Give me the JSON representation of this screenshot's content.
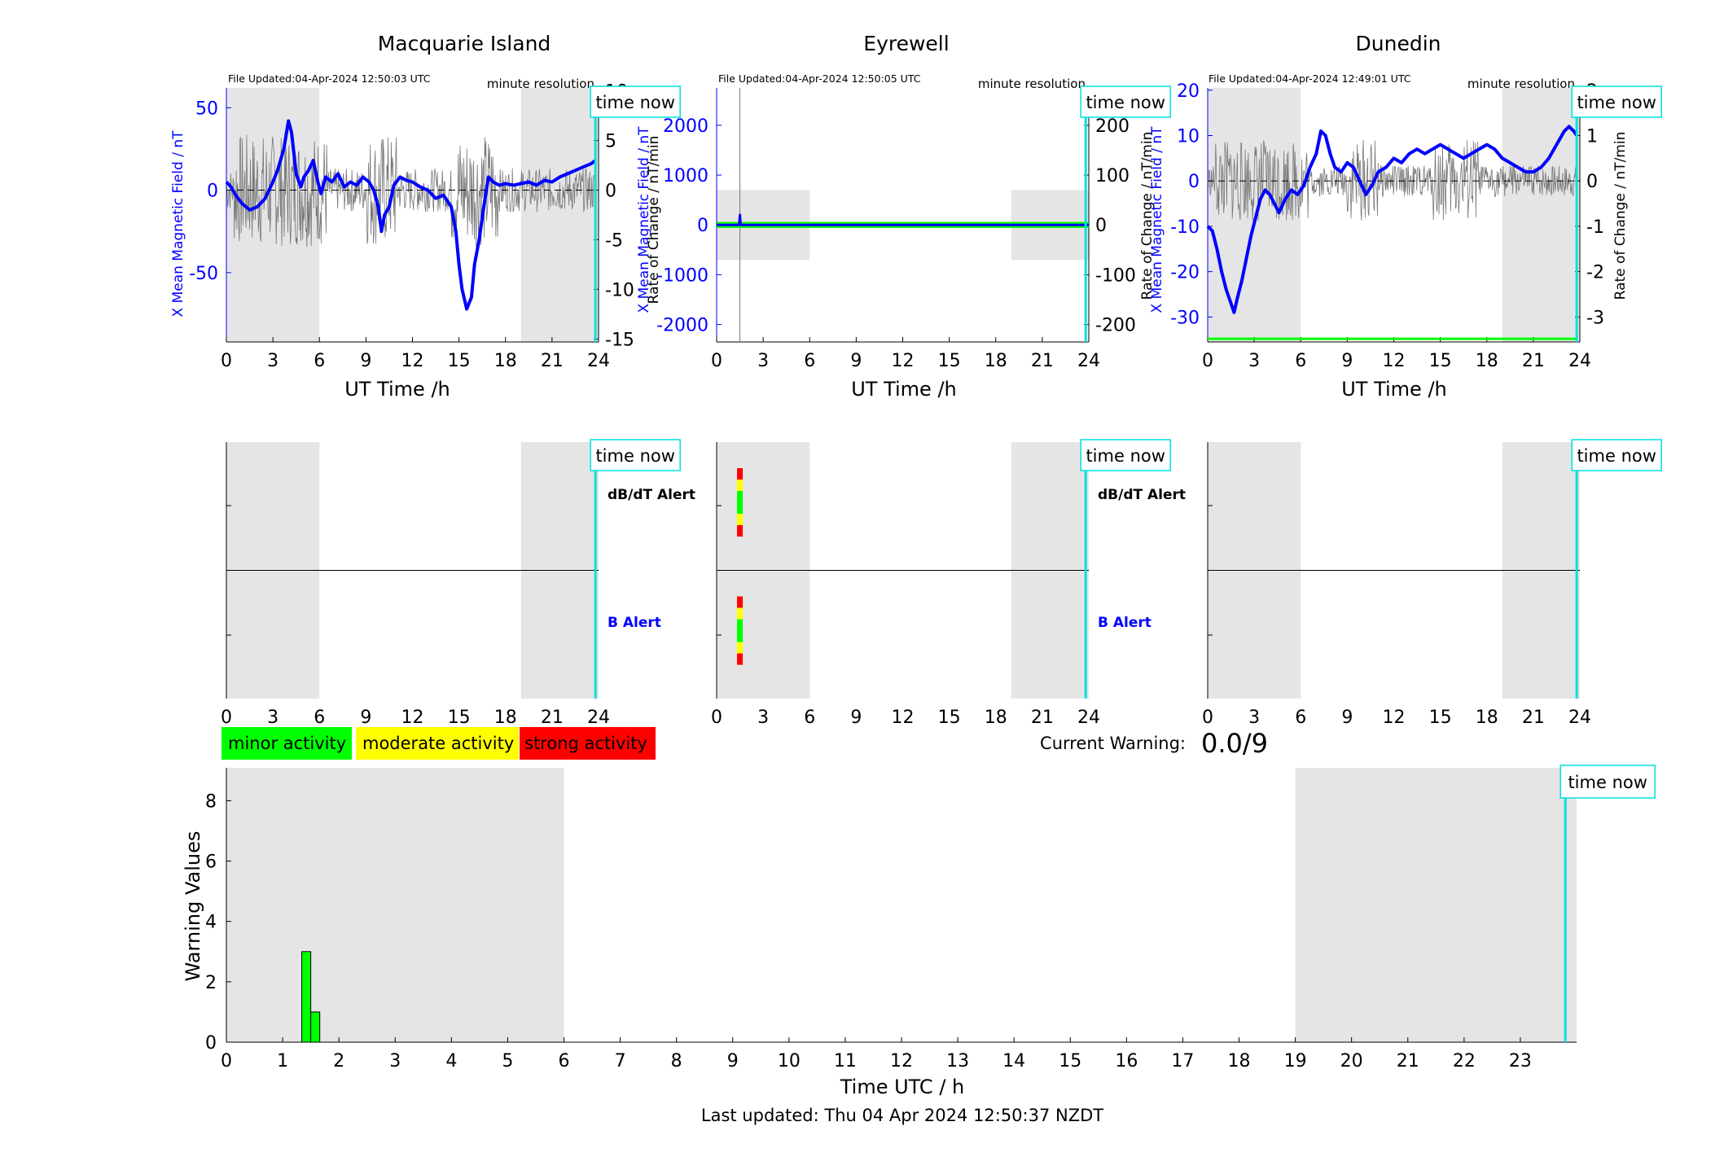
{
  "stations": [
    {
      "name": "Macquarie Island",
      "file_updated": "File Updated:04-Apr-2024 12:50:03 UTC",
      "resolution": "minute resolution",
      "left_ylabel": "X Mean Magnetic Field / nT",
      "right_ylabel": "Rate of Change / nT/min",
      "left_ticks": [
        "50",
        "0",
        "-50"
      ],
      "right_ticks": [
        "10",
        "5",
        "0",
        "-5",
        "-10",
        "-15"
      ],
      "ylim_left": [
        -92,
        62
      ],
      "ylim_right": [
        -15.3,
        10.3
      ],
      "show_db_alert_labels": true
    },
    {
      "name": "Eyrewell",
      "file_updated": "File Updated:04-Apr-2024 12:50:05 UTC",
      "resolution": "minute resolution",
      "left_ylabel": "X Mean Magnetic Field / nT",
      "right_ylabel": "Rate of Change / nT/min",
      "left_ticks": [
        "2000",
        "1000",
        "0",
        "-1000",
        "-2000"
      ],
      "right_ticks": [
        "200",
        "100",
        "0",
        "-100",
        "-200"
      ],
      "ylim_left": [
        -2350,
        2750
      ],
      "ylim_right": [
        -235,
        275
      ],
      "show_db_alert_labels": true
    },
    {
      "name": "Dunedin",
      "file_updated": "File Updated:04-Apr-2024 12:49:01 UTC",
      "resolution": "minute resolution",
      "left_ylabel": "X Mean Magnetic Field / nT",
      "right_ylabel": "Rate of Change / nT/min",
      "left_ticks": [
        "20",
        "10",
        "0",
        "-10",
        "-20",
        "-30"
      ],
      "right_ticks": [
        "2",
        "1",
        "0",
        "-1",
        "-2",
        "-3"
      ],
      "ylim_left": [
        -35.5,
        20.5
      ],
      "ylim_right": [
        -3.55,
        2.05
      ],
      "show_db_alert_labels": false
    }
  ],
  "time_now_label": "time now",
  "db_alert_label": "dB/dT Alert",
  "b_alert_label": "B Alert",
  "x_axis_label": "UT Time /h",
  "x_ticks": [
    "0",
    "3",
    "6",
    "9",
    "12",
    "15",
    "18",
    "21",
    "24"
  ],
  "legend": {
    "minor": "minor activity",
    "moderate": "moderate activity",
    "strong": "strong activity"
  },
  "current_warning": {
    "label": "Current Warning:",
    "value": "0.0/9"
  },
  "bottom_chart": {
    "ylabel": "Warning Values",
    "xlabel": "Time UTC / h",
    "y_ticks": [
      "0",
      "2",
      "4",
      "6",
      "8"
    ],
    "x_ticks": [
      "0",
      "1",
      "2",
      "3",
      "4",
      "5",
      "6",
      "7",
      "8",
      "9",
      "10",
      "11",
      "12",
      "13",
      "14",
      "15",
      "16",
      "17",
      "18",
      "19",
      "20",
      "21",
      "22",
      "23"
    ]
  },
  "footer": "Last updated: Thu 04 Apr 2024 12:50:37 NZDT",
  "colors": {
    "field": "#0000ff",
    "rate": "#555555",
    "now_line": "#00e0e0",
    "night_shading": "#e5e5e5",
    "minor": "#00ff00",
    "moderate": "#ffff00",
    "strong": "#ff0000"
  },
  "chart_data": [
    {
      "type": "line",
      "title": "Macquarie Island",
      "xlabel": "UT Time /h",
      "ylabel": "X Mean Magnetic Field / nT",
      "y2label": "Rate of Change / nT/min",
      "xlim": [
        0,
        24
      ],
      "ylim": [
        -92,
        62
      ],
      "y2lim": [
        -15.3,
        10.3
      ],
      "night_shading_hours": [
        [
          0,
          6
        ],
        [
          19,
          24
        ]
      ],
      "time_now": 23.8,
      "series": [
        {
          "name": "X Mean Magnetic Field",
          "axis": "left",
          "x": [
            0,
            0.3,
            0.6,
            1,
            1.5,
            2,
            2.5,
            3,
            3.3,
            3.7,
            4.0,
            4.2,
            4.5,
            4.8,
            5,
            5.3,
            5.6,
            5.9,
            6.1,
            6.4,
            6.8,
            7.2,
            7.6,
            8,
            8.4,
            8.8,
            9.2,
            9.5,
            9.8,
            10.0,
            10.2,
            10.5,
            10.8,
            11.2,
            11.6,
            12,
            12.5,
            13,
            13.5,
            14,
            14.5,
            14.8,
            15.0,
            15.2,
            15.5,
            15.8,
            16.0,
            16.3,
            16.6,
            16.9,
            17.2,
            17.6,
            18,
            18.5,
            19,
            19.5,
            20,
            20.5,
            21,
            21.5,
            22,
            22.5,
            23,
            23.5,
            23.8
          ],
          "values": [
            5,
            2,
            -3,
            -8,
            -12,
            -10,
            -5,
            5,
            12,
            25,
            42,
            35,
            10,
            2,
            8,
            12,
            18,
            5,
            -2,
            8,
            5,
            10,
            2,
            5,
            3,
            8,
            5,
            0,
            -10,
            -25,
            -15,
            -10,
            3,
            8,
            6,
            5,
            2,
            0,
            -5,
            -3,
            -10,
            -25,
            -45,
            -60,
            -72,
            -65,
            -45,
            -30,
            -10,
            8,
            5,
            3,
            4,
            3,
            4,
            5,
            3,
            6,
            5,
            8,
            10,
            12,
            14,
            16,
            18
          ]
        },
        {
          "name": "Rate of Change",
          "axis": "right",
          "x": [
            0,
            24
          ],
          "values": [
            0,
            0
          ]
        }
      ]
    },
    {
      "type": "line",
      "title": "Eyrewell",
      "xlabel": "UT Time /h",
      "ylabel": "X Mean Magnetic Field / nT",
      "y2label": "Rate of Change / nT/min",
      "xlim": [
        0,
        24
      ],
      "ylim": [
        -2350,
        2750
      ],
      "y2lim": [
        -235,
        275
      ],
      "night_shading_hours": [
        [
          0,
          6
        ],
        [
          19,
          24
        ]
      ],
      "time_now": 23.8,
      "series": [
        {
          "name": "X Mean Magnetic Field",
          "axis": "left",
          "x": [
            0,
            1.45,
            1.5,
            1.55,
            24
          ],
          "values": [
            0,
            0,
            200,
            0,
            0
          ]
        },
        {
          "name": "Rate of Change",
          "axis": "right",
          "x": [
            0,
            24
          ],
          "values": [
            0,
            0
          ]
        }
      ]
    },
    {
      "type": "line",
      "title": "Dunedin",
      "xlabel": "UT Time /h",
      "ylabel": "X Mean Magnetic Field / nT",
      "y2label": "Rate of Change / nT/min",
      "xlim": [
        0,
        24
      ],
      "ylim": [
        -35.5,
        20.5
      ],
      "y2lim": [
        -3.55,
        2.05
      ],
      "night_shading_hours": [
        [
          0,
          6
        ],
        [
          19,
          24
        ]
      ],
      "time_now": 23.8,
      "series": [
        {
          "name": "X Mean Magnetic Field",
          "axis": "left",
          "x": [
            0,
            0.3,
            0.6,
            0.9,
            1.2,
            1.5,
            1.7,
            1.9,
            2.2,
            2.5,
            2.8,
            3.1,
            3.4,
            3.7,
            4.0,
            4.3,
            4.6,
            5,
            5.4,
            5.8,
            6.2,
            6.6,
            7,
            7.3,
            7.6,
            7.9,
            8.2,
            8.6,
            9,
            9.4,
            9.8,
            10.2,
            10.6,
            11,
            11.5,
            12,
            12.5,
            13,
            13.5,
            14,
            14.5,
            15,
            15.5,
            16,
            16.5,
            17,
            17.5,
            18,
            18.5,
            19,
            19.5,
            20,
            20.5,
            21,
            21.5,
            22,
            22.5,
            23,
            23.3,
            23.6,
            23.8
          ],
          "values": [
            -10,
            -11,
            -15,
            -20,
            -24,
            -27,
            -29,
            -26,
            -22,
            -17,
            -12,
            -8,
            -4,
            -2,
            -3,
            -5,
            -7,
            -4,
            -2,
            -3,
            -1,
            3,
            6,
            11,
            10,
            6,
            3,
            2,
            4,
            3,
            0,
            -3,
            -1,
            2,
            3,
            5,
            4,
            6,
            7,
            6,
            7,
            8,
            7,
            6,
            5,
            6,
            7,
            8,
            7,
            5,
            4,
            3,
            2,
            2,
            3,
            5,
            8,
            11,
            12,
            11,
            10
          ]
        },
        {
          "name": "Rate of Change",
          "axis": "right",
          "x": [
            0,
            24
          ],
          "values": [
            0,
            0
          ]
        }
      ]
    },
    {
      "type": "bar",
      "title": "",
      "xlabel": "Time UTC / h",
      "ylabel": "Warning Values",
      "xlim": [
        0,
        24
      ],
      "ylim": [
        0,
        9
      ],
      "night_shading_hours": [
        [
          0,
          6
        ],
        [
          19,
          24
        ]
      ],
      "time_now": 23.8,
      "series": [
        {
          "name": "",
          "x": [
            1.42,
            1.58
          ],
          "values": [
            3,
            1
          ],
          "bar_width": 0.16
        }
      ]
    }
  ]
}
